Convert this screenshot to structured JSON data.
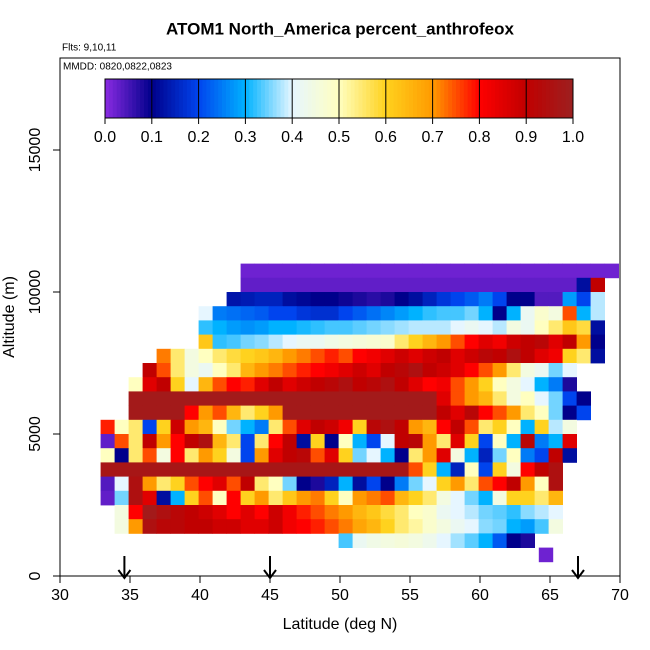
{
  "chart_data": {
    "type": "heatmap",
    "title": "ATOM1 North_America percent_anthrofeox",
    "subtitle": "Flts: 9,10,11",
    "annotation": "MMDD: 0820,0822,0823",
    "x_label": "Latitude (deg N)",
    "y_label": "Altitude (m)",
    "xlim": [
      30,
      70
    ],
    "xticks": [
      30,
      35,
      40,
      45,
      50,
      55,
      60,
      65,
      70
    ],
    "ylim": [
      0,
      18240
    ],
    "yticks": [
      0,
      5000,
      10000,
      15000
    ],
    "arrows": [
      34.6,
      45,
      67
    ],
    "colormap": [
      "#8a2be2",
      "#00008b",
      "#0044ee",
      "#00b2ff",
      "#e6f6ff",
      "#ffffc0",
      "#ffd21e",
      "#ff9a00",
      "#ff0000",
      "#c00000",
      "#9c2020"
    ],
    "colorbar_ticks": [
      {
        "value": 0,
        "label": "0.0"
      },
      {
        "value": 0.1,
        "label": "0.1"
      },
      {
        "value": 0.2,
        "label": "0.2"
      },
      {
        "value": 0.3,
        "label": "0.3"
      },
      {
        "value": 0.4,
        "label": "0.4"
      },
      {
        "value": 0.5,
        "label": "0.5"
      },
      {
        "value": 0.6,
        "label": "0.6"
      },
      {
        "value": 0.7,
        "label": "0.7"
      },
      {
        "value": 0.8,
        "label": "0.8"
      },
      {
        "value": 0.9,
        "label": "0.9"
      },
      {
        "value": 1,
        "label": "1.0"
      }
    ],
    "rows": [
      {
        "altitude": 10750,
        "lat": 42.9,
        "values": [
          0.02,
          0.02,
          0.02,
          0.02,
          0.02,
          0.02,
          0.02,
          0.02,
          0.02,
          0.02,
          0.02,
          0.02,
          0.02,
          0.02,
          0.02,
          0.02,
          0.02,
          0.02,
          0.02,
          0.02,
          0.02,
          0.02,
          0.02,
          0.02,
          0.02,
          0.02,
          0.02
        ]
      },
      {
        "altitude": 10250,
        "lat": 42.9,
        "values": [
          0.03,
          0.03,
          0.03,
          0.03,
          0.03,
          0.03,
          0.03,
          0.03,
          0.03,
          0.03,
          0.03,
          0.03,
          0.03,
          0.03,
          0.03,
          0.03,
          0.03,
          0.03,
          0.03,
          0.03,
          0.03,
          0.03,
          0.03,
          0.03,
          0.12,
          0.9
        ]
      },
      {
        "altitude": 9750,
        "lat": 41.9,
        "values": [
          0.13,
          0.14,
          0.15,
          0.15,
          0.12,
          0.11,
          0.1,
          0.1,
          0.09,
          0.08,
          0.07,
          0.08,
          0.1,
          0.12,
          0.15,
          0.18,
          0.2,
          0.22,
          0.25,
          0.2,
          0.1,
          0.1,
          0.04,
          0.04,
          0.28,
          0.2,
          0.38
        ]
      },
      {
        "altitude": 9250,
        "lat": 39.9,
        "values": [
          0.4,
          0.25,
          0.24,
          0.23,
          0.22,
          0.2,
          0.2,
          0.18,
          0.17,
          0.17,
          0.2,
          0.22,
          0.24,
          0.26,
          0.28,
          0.3,
          0.32,
          0.33,
          0.33,
          0.35,
          0.3,
          0.1,
          0.3,
          0.42,
          0.48,
          0.45,
          0.75,
          0.3,
          0.38
        ]
      },
      {
        "altitude": 8750,
        "lat": 39.9,
        "values": [
          0.32,
          0.3,
          0.28,
          0.27,
          0.28,
          0.3,
          0.3,
          0.31,
          0.32,
          0.33,
          0.33,
          0.34,
          0.35,
          0.36,
          0.37,
          0.38,
          0.38,
          0.38,
          0.4,
          0.42,
          0.4,
          0.38,
          0.45,
          0.42,
          0.5,
          0.55,
          0.62,
          0.58,
          0.12
        ]
      },
      {
        "altitude": 8250,
        "lat": 39.9,
        "values": [
          0.62,
          0.32,
          0.33,
          0.35,
          0.36,
          0.38,
          0.4,
          0.42,
          0.42,
          0.44,
          0.45,
          0.46,
          0.47,
          0.48,
          0.55,
          0.6,
          0.65,
          0.7,
          0.75,
          0.8,
          0.85,
          0.82,
          0.88,
          0.9,
          0.92,
          0.85,
          0.9,
          0.7,
          0.1
        ]
      },
      {
        "altitude": 7750,
        "lat": 36.9,
        "values": [
          0.72,
          0.55,
          0.45,
          0.5,
          0.55,
          0.58,
          0.6,
          0.62,
          0.65,
          0.7,
          0.72,
          0.75,
          0.78,
          0.75,
          0.8,
          0.82,
          0.85,
          0.88,
          0.85,
          0.88,
          0.9,
          0.85,
          0.88,
          0.92,
          0.9,
          0.95,
          0.9,
          0.85,
          0.82,
          0.6,
          0.55,
          0.12
        ]
      },
      {
        "altitude": 7250,
        "lat": 35.9,
        "values": [
          0.9,
          0.75,
          0.55,
          0.45,
          0.42,
          0.5,
          0.55,
          0.65,
          0.7,
          0.72,
          0.75,
          0.78,
          0.8,
          0.82,
          0.85,
          0.88,
          0.85,
          0.9,
          0.92,
          0.95,
          0.9,
          0.88,
          0.85,
          0.8,
          0.75,
          0.7,
          0.55,
          0.45,
          0.42,
          0.35,
          0.4
        ]
      },
      {
        "altitude": 6750,
        "lat": 34.9,
        "values": [
          0.5,
          0.85,
          0.9,
          0.6,
          0.4,
          0.65,
          0.75,
          0.8,
          0.78,
          0.85,
          0.9,
          0.85,
          0.88,
          0.9,
          0.92,
          0.95,
          0.9,
          0.92,
          0.95,
          0.9,
          0.85,
          0.8,
          0.82,
          0.75,
          0.7,
          0.6,
          0.5,
          0.45,
          0.4,
          0.3,
          0.25,
          0.08
        ]
      },
      {
        "altitude": 6250,
        "lat": 34.9,
        "values": [
          0.98,
          0.98,
          0.98,
          0.98,
          0.98,
          0.98,
          0.98,
          0.98,
          0.98,
          0.98,
          0.98,
          0.98,
          0.98,
          0.98,
          0.98,
          0.98,
          0.98,
          0.98,
          0.98,
          0.98,
          0.98,
          0.98,
          0.85,
          0.75,
          0.7,
          0.65,
          0.55,
          0.45,
          0.5,
          0.4,
          0.35,
          0.2,
          0.1
        ]
      },
      {
        "altitude": 5750,
        "lat": 34.9,
        "values": [
          0.98,
          0.98,
          0.98,
          0.98,
          0.8,
          0.7,
          0.75,
          0.65,
          0.55,
          0.6,
          0.7,
          0.98,
          0.98,
          0.98,
          0.98,
          0.98,
          0.98,
          0.98,
          0.98,
          0.98,
          0.98,
          0.98,
          0.9,
          0.85,
          0.92,
          0.8,
          0.75,
          0.7,
          0.55,
          0.5,
          0.35,
          0.1,
          0.2
        ]
      },
      {
        "altitude": 5250,
        "lat": 32.9,
        "values": [
          0.78,
          0.5,
          0.55,
          0.2,
          0.6,
          0.88,
          0.7,
          0.65,
          0.5,
          0.35,
          0.3,
          0.25,
          0.55,
          0.75,
          0.85,
          0.9,
          0.88,
          0.82,
          0.6,
          0.92,
          0.95,
          0.9,
          0.7,
          0.65,
          0.8,
          0.9,
          0.75,
          0.55,
          0.6,
          0.5,
          0.3,
          0.6,
          0.38,
          0.45
        ]
      },
      {
        "altitude": 4750,
        "lat": 32.9,
        "values": [
          0.03,
          0.75,
          0.55,
          0.9,
          0.7,
          0.8,
          0.9,
          0.95,
          0.65,
          0.55,
          0.2,
          0.55,
          0.8,
          0.9,
          0.12,
          0.6,
          0.1,
          0.5,
          0.3,
          0.2,
          0.4,
          0.9,
          0.92,
          0.7,
          0.55,
          0.85,
          0.6,
          0.2,
          0.5,
          0.3,
          0.92,
          0.25,
          0.3,
          0.85
        ]
      },
      {
        "altitude": 4250,
        "lat": 32.9,
        "values": [
          0.5,
          0.1,
          0.55,
          0.75,
          0.45,
          0.8,
          0.55,
          0.7,
          0.6,
          0.45,
          0.2,
          0.7,
          0.85,
          0.9,
          0.92,
          0.75,
          0.85,
          0.6,
          0.35,
          0.4,
          0.3,
          0.1,
          0.55,
          0.7,
          0.85,
          0.45,
          0.3,
          0.15,
          0.35,
          0.5,
          0.25,
          0.2,
          0.9,
          0.12
        ]
      },
      {
        "altitude": 3750,
        "lat": 32.9,
        "values": [
          0.97,
          0.97,
          0.97,
          0.97,
          0.97,
          0.97,
          0.97,
          0.97,
          0.97,
          0.97,
          0.97,
          0.97,
          0.97,
          0.97,
          0.97,
          0.97,
          0.97,
          0.97,
          0.97,
          0.97,
          0.97,
          0.97,
          0.75,
          0.6,
          0.3,
          0.15,
          0.5,
          0.2,
          0.6,
          0.45,
          0.8,
          0.9,
          0.95
        ]
      },
      {
        "altitude": 3250,
        "lat": 32.9,
        "values": [
          0.04,
          0.4,
          0.95,
          0.7,
          0.55,
          0.6,
          0.75,
          0.8,
          0.85,
          0.75,
          0.9,
          0.55,
          0.5,
          0.35,
          0.1,
          0.08,
          0.15,
          0.3,
          0.12,
          0.2,
          0.1,
          0.25,
          0.35,
          0.4,
          0.6,
          0.7,
          0.55,
          0.75,
          0.8,
          0.9,
          0.7,
          0.5,
          0.95
        ]
      },
      {
        "altitude": 2750,
        "lat": 32.9,
        "values": [
          0.03,
          0.35,
          0.95,
          0.85,
          0.12,
          0.3,
          0.6,
          0.75,
          0.5,
          0.8,
          0.6,
          0.7,
          0.55,
          0.62,
          0.7,
          0.72,
          0.6,
          0.5,
          0.7,
          0.72,
          0.75,
          0.65,
          0.6,
          0.55,
          0.45,
          0.4,
          0.35,
          0.3,
          0.45,
          0.6,
          0.6,
          0.55,
          0.65
        ]
      },
      {
        "altitude": 2250,
        "lat": 33.9,
        "values": [
          0.45,
          0.8,
          0.98,
          0.95,
          0.92,
          0.9,
          0.88,
          0.85,
          0.8,
          0.85,
          0.8,
          0.88,
          0.82,
          0.78,
          0.75,
          0.72,
          0.7,
          0.65,
          0.62,
          0.58,
          0.55,
          0.5,
          0.48,
          0.42,
          0.4,
          0.38,
          0.35,
          0.34,
          0.32,
          0.36,
          0.38,
          0.4
        ]
      },
      {
        "altitude": 1750,
        "lat": 33.9,
        "values": [
          0.45,
          0.7,
          0.95,
          0.92,
          0.92,
          0.9,
          0.9,
          0.88,
          0.88,
          0.85,
          0.85,
          0.88,
          0.82,
          0.8,
          0.78,
          0.75,
          0.72,
          0.68,
          0.65,
          0.6,
          0.55,
          0.52,
          0.48,
          0.45,
          0.42,
          0.4,
          0.36,
          0.35,
          0.3,
          0.28,
          0.33,
          0.45
        ]
      },
      {
        "altitude": 1250,
        "lat": 49.9,
        "values": [
          0.33,
          0.42,
          0.44,
          0.45,
          0.46,
          0.45,
          0.43,
          0.4,
          0.37,
          0.34,
          0.3,
          0.22,
          0.1,
          0.08
        ]
      },
      {
        "altitude": 750,
        "lat": 64.2,
        "values": [
          0.02
        ]
      }
    ]
  }
}
